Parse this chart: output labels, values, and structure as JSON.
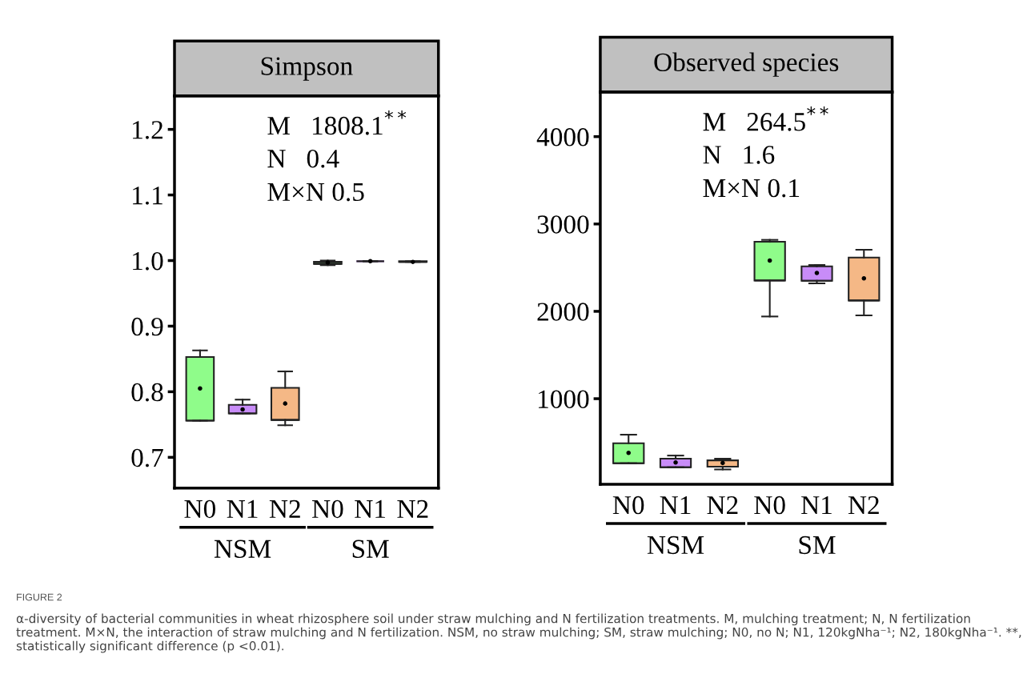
{
  "chart_data": [
    {
      "type": "box",
      "title": "Simpson",
      "categories": [
        "N0",
        "N1",
        "N2",
        "N0",
        "N1",
        "N2"
      ],
      "boxes": [
        {
          "low": 0.756,
          "q1": 0.756,
          "median": 0.756,
          "q3": 0.853,
          "high": 0.863,
          "mean": 0.805
        },
        {
          "low": 0.767,
          "q1": 0.767,
          "median": 0.767,
          "q3": 0.78,
          "high": 0.788,
          "mean": 0.773
        },
        {
          "low": 0.749,
          "q1": 0.757,
          "median": 0.757,
          "q3": 0.806,
          "high": 0.831,
          "mean": 0.782
        },
        {
          "low": 0.993,
          "q1": 0.995,
          "median": 0.995,
          "q3": 0.998,
          "high": 1.0,
          "mean": 0.997
        },
        {
          "low": 0.999,
          "q1": 0.999,
          "median": 0.999,
          "q3": 0.999,
          "high": 0.999,
          "mean": 0.999
        },
        {
          "low": 0.998,
          "q1": 0.998,
          "median": 0.998,
          "q3": 0.999,
          "high": 0.999,
          "mean": 0.998
        }
      ],
      "colors": [
        "#8ffc8a",
        "#c88cf8",
        "#f5b886",
        "#8ffc8a",
        "#c88cf8",
        "#f5b886"
      ],
      "ylim": [
        0.653,
        1.251
      ],
      "yticks": [
        0.7,
        0.8,
        0.9,
        {
          "value": 1.0,
          "label": "1.0"
        },
        1.1,
        1.2
      ],
      "grid": false,
      "legend": false,
      "annotations": [
        "M   1808.1$^{**}$",
        "N   0.4",
        "M×N 0.5",
        "NSM",
        "SM",
        "FIGURE 2",
        "α-diversity of bacterial communities in wheat rhizosphere soil under straw mulching and N fertilization treatments. M, mulching treatment; N, N fertilization treatment. M×N, the interaction of straw mulching and N fertilization. NSM, no straw mulching; SM, straw mulching; N0, no N; N1, 120kgNha⁻¹; N2, 180kgNha⁻¹. **, statistically significant difference (p <0.01)."
      ]
    },
    {
      "type": "box",
      "title": "Observed species",
      "categories": [
        "N0",
        "N1",
        "N2",
        "N0",
        "N1",
        "N2"
      ],
      "boxes": [
        {
          "low": 261,
          "q1": 261,
          "median": 261,
          "q3": 490,
          "high": 588,
          "mean": 380
        },
        {
          "low": 215,
          "q1": 215,
          "median": 215,
          "q3": 313,
          "high": 349,
          "mean": 270
        },
        {
          "low": 190,
          "q1": 221,
          "median": 221,
          "q3": 294,
          "high": 313,
          "mean": 264
        },
        {
          "low": 1941,
          "q1": 2353,
          "median": 2353,
          "q3": 2796,
          "high": 2818,
          "mean": 2582
        },
        {
          "low": 2320,
          "q1": 2350,
          "median": 2350,
          "q3": 2515,
          "high": 2530,
          "mean": 2439
        },
        {
          "low": 1953,
          "q1": 2124,
          "median": 2124,
          "q3": 2616,
          "high": 2705,
          "mean": 2378
        }
      ],
      "colors": [
        "#8ffc8a",
        "#c88cf8",
        "#f5b886",
        "#8ffc8a",
        "#c88cf8",
        "#f5b886"
      ],
      "ylim": [
        20,
        4510
      ],
      "yticks": [
        1000,
        2000,
        3000,
        4000
      ],
      "grid": false,
      "legend": false,
      "annotations": [
        "M   264.5$^{**}$",
        "N   1.6",
        "M×N 0.1",
        "NSM",
        "SM"
      ]
    }
  ]
}
